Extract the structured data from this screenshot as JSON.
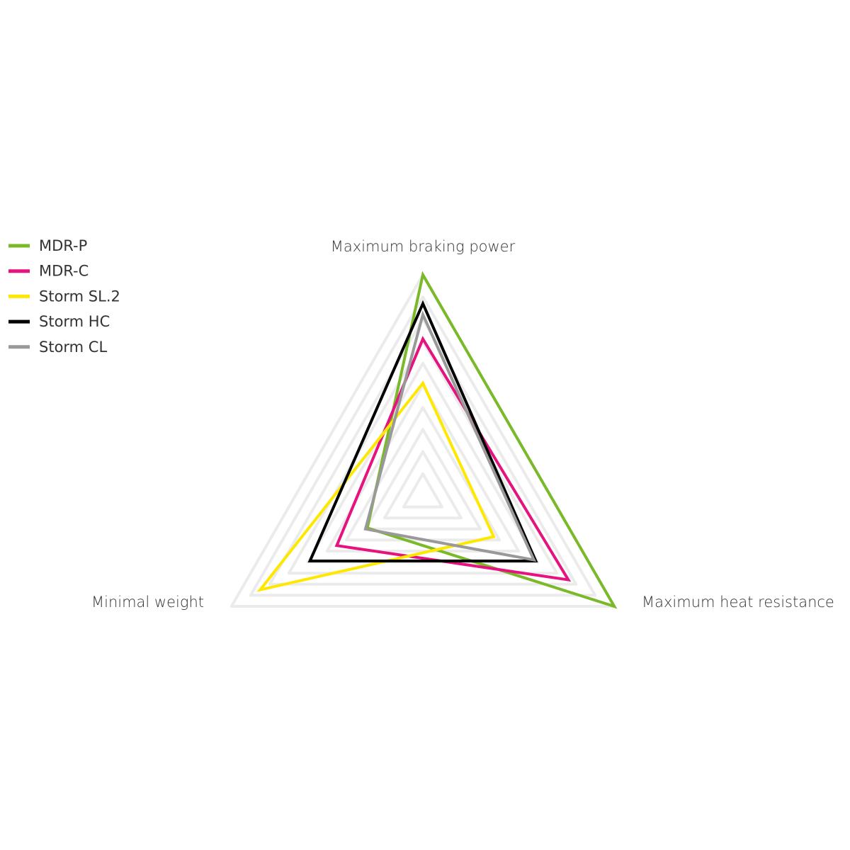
{
  "chart_data": {
    "type": "radar",
    "title": "",
    "axes": [
      "Maximum braking power",
      "Maximum heat resistance",
      "Minimal weight"
    ],
    "range": [
      0,
      10
    ],
    "grid_levels": 10,
    "grid": true,
    "legend_placement": "top-left",
    "series": [
      {
        "name": "MDR-P",
        "color": "#7ab929",
        "values": [
          10,
          10,
          2.9
        ]
      },
      {
        "name": "MDR-C",
        "color": "#e6137e",
        "values": [
          7.1,
          7.6,
          4.5
        ]
      },
      {
        "name": "Storm SL.2",
        "color": "#ffe800",
        "values": [
          5.1,
          3.7,
          8.5
        ]
      },
      {
        "name": "Storm HC",
        "color": "#000000",
        "values": [
          8.7,
          5.9,
          5.9
        ]
      },
      {
        "name": "Storm CL",
        "color": "#999999",
        "values": [
          8.2,
          5.8,
          3.0
        ]
      }
    ]
  }
}
